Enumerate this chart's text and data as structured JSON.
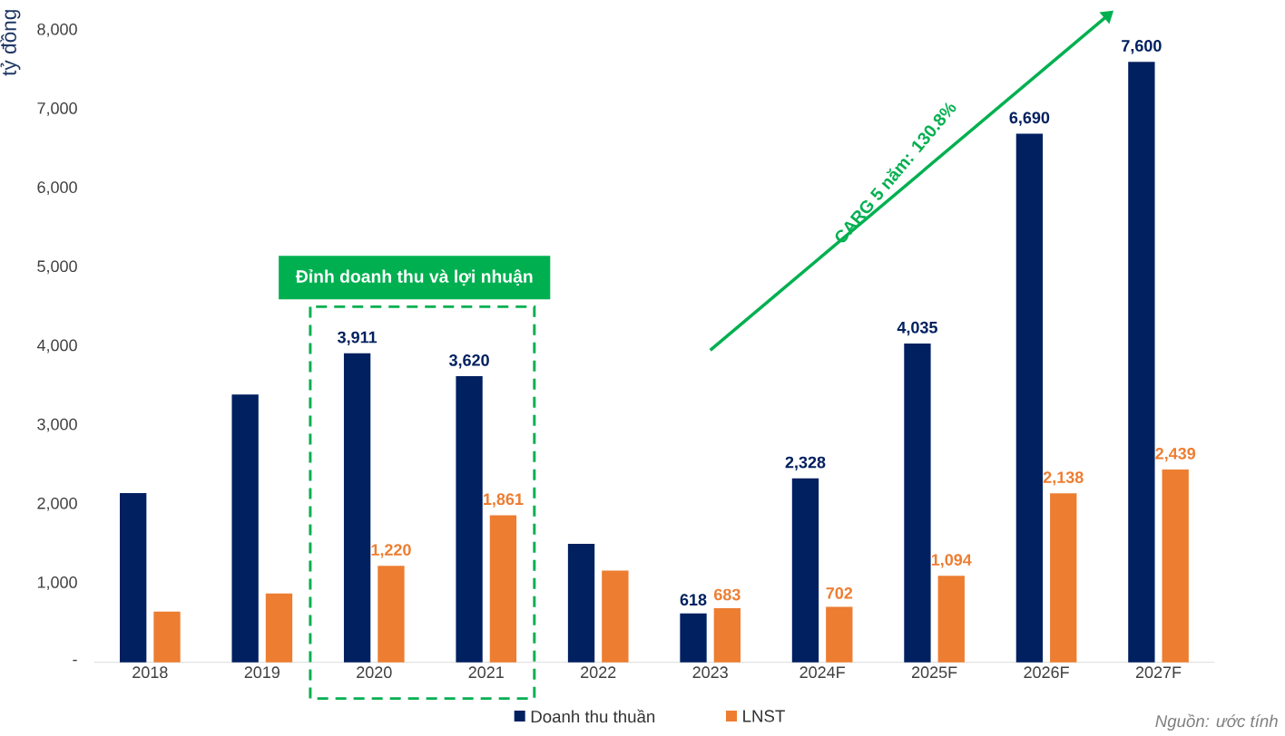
{
  "chart_data": {
    "type": "bar",
    "ylabel": "tỷ đồng",
    "categories": [
      "2018",
      "2019",
      "2020",
      "2021",
      "2022",
      "2023",
      "2024F",
      "2025F",
      "2026F",
      "2027F"
    ],
    "series": [
      {
        "name": "Doanh thu thuần",
        "color": "#002060",
        "values": [
          2140,
          3390,
          3911,
          3620,
          1500,
          618,
          2328,
          4035,
          6690,
          7600
        ],
        "value_labels": [
          null,
          null,
          "3,911",
          "3,620",
          null,
          "618",
          "2,328",
          "4,035",
          "6,690",
          "7,600"
        ]
      },
      {
        "name": "LNST",
        "color": "#ed7d31",
        "values": [
          640,
          870,
          1220,
          1861,
          1160,
          683,
          702,
          1094,
          2138,
          2439
        ],
        "value_labels": [
          null,
          null,
          "1,220",
          "1,861",
          null,
          "683",
          "702",
          "1,094",
          "2,138",
          "2,439"
        ]
      }
    ],
    "ylim": [
      0,
      8000
    ],
    "yticks": [
      {
        "value": 0,
        "label": "-"
      },
      {
        "value": 1000,
        "label": "1,000"
      },
      {
        "value": 2000,
        "label": "2,000"
      },
      {
        "value": 3000,
        "label": "3,000"
      },
      {
        "value": 4000,
        "label": "4,000"
      },
      {
        "value": 5000,
        "label": "5,000"
      },
      {
        "value": 6000,
        "label": "6,000"
      },
      {
        "value": 7000,
        "label": "7,000"
      },
      {
        "value": 8000,
        "label": "8,000"
      }
    ],
    "annotations": [
      "CARG 5 năm: 130.8%",
      "Nguồn: ước tính",
      "Đỉnh doanh thu và lợi nhuận"
    ],
    "legend": "bottom",
    "grid": false
  }
}
